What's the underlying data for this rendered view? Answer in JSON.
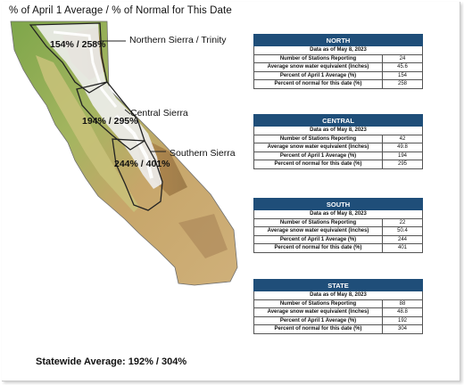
{
  "header": {
    "title": "% of April 1 Average / % of Normal for This Date"
  },
  "map": {
    "regions": [
      {
        "name": "Northern Sierra / Trinity",
        "percent_label": "154% / 258%"
      },
      {
        "name": "Central Sierra",
        "percent_label": "194% / 295%"
      },
      {
        "name": "Southern Sierra",
        "percent_label": "244% / 401%"
      }
    ]
  },
  "tables": [
    {
      "title": "NORTH",
      "as_of": "Data as of May 8, 2023",
      "rows": [
        {
          "label": "Number of Stations Reporting",
          "value": "24"
        },
        {
          "label": "Average snow water equivalent (Inches)",
          "value": "45.6"
        },
        {
          "label": "Percent of April 1 Average (%)",
          "value": "154"
        },
        {
          "label": "Percent of normal for this date (%)",
          "value": "258"
        }
      ]
    },
    {
      "title": "CENTRAL",
      "as_of": "Data as of May 8, 2023",
      "rows": [
        {
          "label": "Number of Stations Reporting",
          "value": "42"
        },
        {
          "label": "Average snow water equivalent (Inches)",
          "value": "49.8"
        },
        {
          "label": "Percent of April 1 Average (%)",
          "value": "194"
        },
        {
          "label": "Percent of normal for this date (%)",
          "value": "295"
        }
      ]
    },
    {
      "title": "SOUTH",
      "as_of": "Data as of May 8, 2023",
      "rows": [
        {
          "label": "Number of Stations Reporting",
          "value": "22"
        },
        {
          "label": "Average snow water equivalent (Inches)",
          "value": "50.4"
        },
        {
          "label": "Percent of April 1 Average (%)",
          "value": "244"
        },
        {
          "label": "Percent of normal for this date (%)",
          "value": "401"
        }
      ]
    },
    {
      "title": "STATE",
      "as_of": "Data as of May 8, 2023",
      "rows": [
        {
          "label": "Number of Stations Reporting",
          "value": "88"
        },
        {
          "label": "Average snow water equivalent (Inches)",
          "value": "48.8"
        },
        {
          "label": "Percent of April 1 Average (%)",
          "value": "192"
        },
        {
          "label": "Percent of normal for this date (%)",
          "value": "304"
        }
      ]
    }
  ],
  "footer": {
    "statewide": "Statewide Average: 192% / 304%"
  },
  "colors": {
    "table_header": "#1f4e79",
    "snow": "#f2f2f2",
    "terrain_low": "#8fb35a",
    "terrain_high": "#b8864e"
  }
}
